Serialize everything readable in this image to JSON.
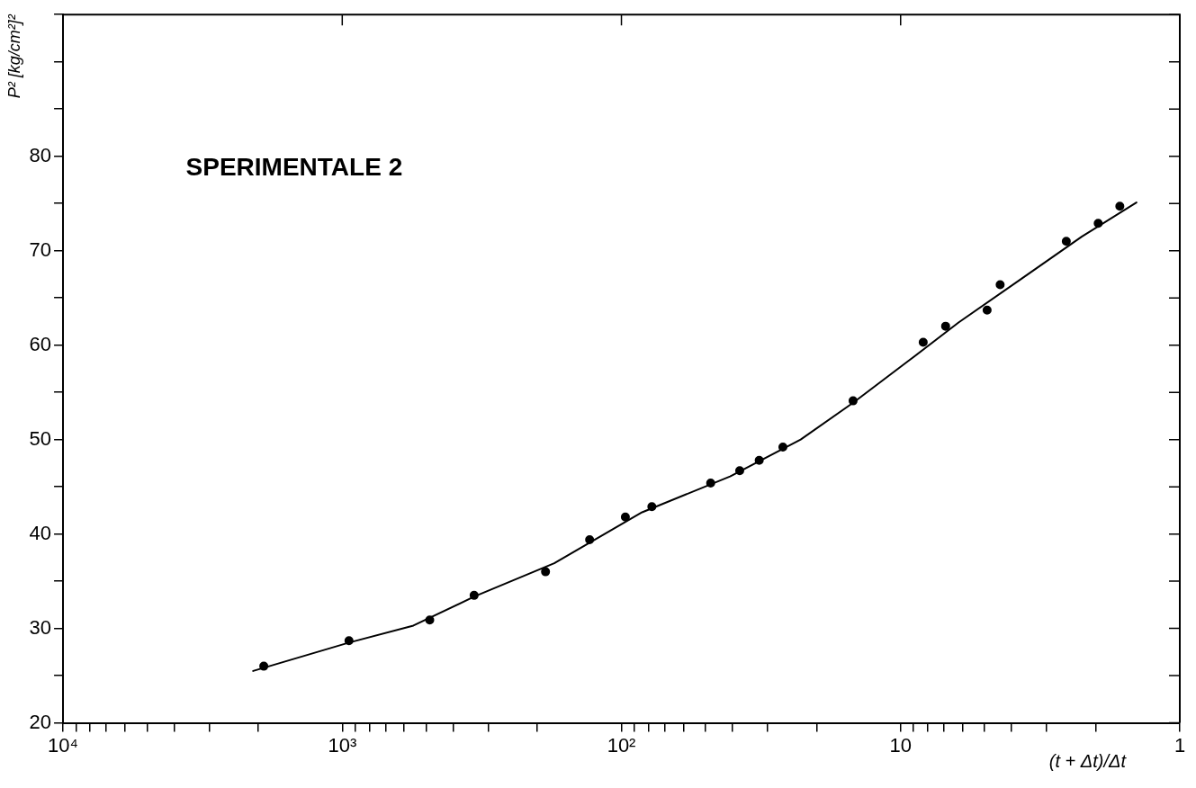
{
  "chart_data": {
    "type": "scatter",
    "title": "SPERIMENTALE 2",
    "xlabel": "(t + Δt)/Δt",
    "ylabel": "P² [kg/cm²]²",
    "log": "x",
    "grid": false,
    "legend": false,
    "marker": "circle",
    "xlim": [
      10000,
      1
    ],
    "xticks": [
      {
        "value": 10000,
        "label": "10⁴"
      },
      {
        "value": 9000,
        "label": null
      },
      {
        "value": 8000,
        "label": null
      },
      {
        "value": 7000,
        "label": null
      },
      {
        "value": 6000,
        "label": null
      },
      {
        "value": 5000,
        "label": null
      },
      {
        "value": 4000,
        "label": null
      },
      {
        "value": 3000,
        "label": null
      },
      {
        "value": 2000,
        "label": null
      },
      {
        "value": 1000,
        "label": "10³"
      },
      {
        "value": 900,
        "label": null
      },
      {
        "value": 800,
        "label": null
      },
      {
        "value": 700,
        "label": null
      },
      {
        "value": 600,
        "label": null
      },
      {
        "value": 500,
        "label": null
      },
      {
        "value": 400,
        "label": null
      },
      {
        "value": 300,
        "label": null
      },
      {
        "value": 200,
        "label": null
      },
      {
        "value": 100,
        "label": "10²"
      },
      {
        "value": 90,
        "label": null
      },
      {
        "value": 80,
        "label": null
      },
      {
        "value": 70,
        "label": null
      },
      {
        "value": 60,
        "label": null
      },
      {
        "value": 50,
        "label": null
      },
      {
        "value": 40,
        "label": null
      },
      {
        "value": 30,
        "label": null
      },
      {
        "value": 20,
        "label": null
      },
      {
        "value": 10,
        "label": "10"
      },
      {
        "value": 9,
        "label": null
      },
      {
        "value": 8,
        "label": null
      },
      {
        "value": 7,
        "label": null
      },
      {
        "value": 6,
        "label": null
      },
      {
        "value": 5,
        "label": null
      },
      {
        "value": 4,
        "label": null
      },
      {
        "value": 3,
        "label": null
      },
      {
        "value": 2,
        "label": null
      },
      {
        "value": 1,
        "label": "1"
      }
    ],
    "ylim": [
      20,
      95
    ],
    "yticks": [
      20,
      {
        "value": 25,
        "label": null
      },
      30,
      {
        "value": 35,
        "label": null
      },
      40,
      {
        "value": 45,
        "label": null
      },
      50,
      {
        "value": 55,
        "label": null
      },
      60,
      {
        "value": 65,
        "label": null
      },
      70,
      {
        "value": 75,
        "label": null
      },
      80,
      {
        "value": 85,
        "label": null
      },
      {
        "value": 90,
        "label": null
      },
      {
        "value": 95,
        "label": null
      }
    ],
    "series": [
      {
        "type": "scatter",
        "color": "#000000",
        "x": [
          1910,
          946,
          486,
          337,
          187,
          130,
          96.8,
          77.8,
          47.9,
          37.7,
          32.1,
          26.4,
          14.8,
          8.3,
          6.9,
          4.9,
          4.4,
          2.55,
          1.96,
          1.64
        ],
        "values": [
          26.0,
          28.7,
          30.9,
          33.5,
          36.0,
          39.4,
          41.8,
          42.9,
          45.4,
          46.7,
          47.8,
          49.2,
          54.1,
          60.3,
          62.0,
          63.7,
          66.4,
          71.0,
          72.9,
          74.7
        ]
      },
      {
        "type": "line",
        "color": "#000000",
        "marker": "none",
        "line_style": "solid",
        "x": [
          2085,
          946,
          556,
          335,
          174,
          84.3,
          40.8,
          22.8,
          14.8,
          9.5,
          6.2,
          3.7,
          2.24,
          1.43
        ],
        "values": [
          25.5,
          28.5,
          30.3,
          33.4,
          36.9,
          42.3,
          46.1,
          50.0,
          53.9,
          58.2,
          62.4,
          67.0,
          71.5,
          75.1
        ]
      }
    ]
  }
}
